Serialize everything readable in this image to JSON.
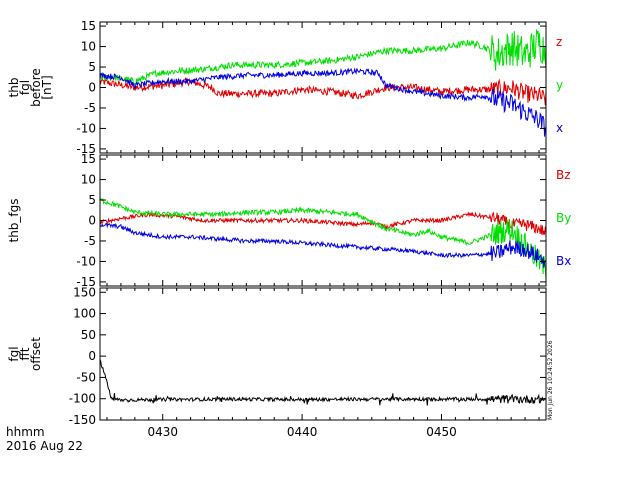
{
  "colors": {
    "red": "#e00000",
    "green": "#00e000",
    "blue": "#0000e0",
    "black": "#000000"
  },
  "footer": {
    "time_label": "hhmm",
    "date_label": "2016 Aug 22",
    "timestamp": "Mon Jun 26 10:24:52 2026"
  },
  "chart_data": [
    {
      "type": "line",
      "ylabel_lines": [
        "thb",
        "fgl",
        "before",
        "[nT]"
      ],
      "ylim": [
        -16,
        16
      ],
      "yticks": [
        -15,
        -10,
        -5,
        0,
        5,
        10,
        15
      ],
      "xlim": [
        425.5,
        457.5
      ],
      "xticks": [
        {
          "value": 430,
          "label": "0430"
        },
        {
          "value": 440,
          "label": "0440"
        },
        {
          "value": 450,
          "label": "0450"
        }
      ],
      "series": [
        {
          "name": "z",
          "color": "#e00000",
          "noise": 0.9,
          "burst": 2.2,
          "x": [
            425.5,
            428,
            430,
            432,
            433.5,
            434,
            436,
            438,
            440,
            442,
            444,
            446,
            448,
            450,
            452,
            454,
            455,
            456,
            457,
            457.5
          ],
          "y": [
            1.5,
            0,
            0.5,
            1.5,
            0,
            -1.5,
            -1.5,
            -1.5,
            -0.5,
            -1,
            -2,
            0,
            0,
            -1,
            -0.5,
            -0.5,
            0,
            -1.5,
            -2,
            -3
          ]
        },
        {
          "name": "y",
          "color": "#00e000",
          "noise": 0.8,
          "burst": 4.5,
          "x": [
            425.5,
            426.5,
            428,
            429.5,
            431,
            433,
            435,
            438,
            440,
            442,
            444,
            446,
            448,
            450,
            452,
            453,
            454,
            455,
            456,
            457,
            457.5
          ],
          "y": [
            2.5,
            2.5,
            1.5,
            3.5,
            4,
            4.5,
            5.5,
            5.5,
            6,
            6.5,
            7.5,
            9,
            9,
            9.5,
            11,
            10,
            8,
            10,
            8,
            11,
            9
          ]
        },
        {
          "name": "x",
          "color": "#0000e0",
          "noise": 0.7,
          "burst": 2.5,
          "x": [
            425.5,
            427,
            428,
            430,
            432,
            434,
            436,
            438,
            440,
            442,
            444,
            445.5,
            446,
            448,
            450,
            452,
            453,
            454,
            455,
            456,
            457,
            457.5
          ],
          "y": [
            3,
            2.5,
            0.5,
            1.5,
            1.5,
            2.5,
            3,
            3,
            3.5,
            3.5,
            4,
            3.5,
            0.5,
            -1,
            -2,
            -2.5,
            -2,
            -3,
            -4,
            -6,
            -8,
            -10
          ]
        }
      ]
    },
    {
      "type": "line",
      "ylabel_lines": [
        "thb_fgs"
      ],
      "ylim": [
        -16,
        16
      ],
      "yticks": [
        -15,
        -10,
        -5,
        0,
        5,
        10,
        15
      ],
      "xlim": [
        425.5,
        457.5
      ],
      "xticks": [
        {
          "value": 430,
          "label": "0430"
        },
        {
          "value": 440,
          "label": "0440"
        },
        {
          "value": 450,
          "label": "0450"
        }
      ],
      "series": [
        {
          "name": "Bz",
          "color": "#e00000",
          "noise": 0.5,
          "burst": 1.5,
          "x": [
            425.5,
            427,
            429,
            431,
            433,
            435,
            437,
            440,
            442,
            444,
            445,
            446,
            448,
            450,
            452,
            454,
            455,
            456,
            457,
            457.5
          ],
          "y": [
            -0.5,
            0.5,
            1.5,
            1,
            0,
            0,
            0,
            0,
            -0.5,
            -1,
            -0.5,
            -1.5,
            0,
            0,
            1.5,
            0.5,
            -1,
            -1,
            -2,
            -3
          ]
        },
        {
          "name": "By",
          "color": "#00e000",
          "noise": 0.6,
          "burst": 3,
          "x": [
            425.5,
            426.5,
            428,
            430,
            432,
            434,
            436,
            438,
            440,
            442,
            444,
            446,
            448,
            449,
            450,
            452,
            454,
            455,
            456,
            457,
            457.5
          ],
          "y": [
            5,
            4,
            2,
            1.5,
            1.5,
            1.5,
            2,
            2,
            2.5,
            2,
            1.5,
            -2,
            -3.5,
            -2.5,
            -4,
            -5.5,
            -3,
            -2,
            -6,
            -10,
            -12
          ]
        },
        {
          "name": "Bx",
          "color": "#0000e0",
          "noise": 0.5,
          "burst": 2,
          "x": [
            425.5,
            427,
            428,
            430,
            432,
            434,
            436,
            438,
            440,
            442,
            444,
            446,
            448,
            450,
            452,
            454,
            455,
            456,
            457,
            457.5
          ],
          "y": [
            -1,
            -1.5,
            -3,
            -4,
            -4,
            -4.5,
            -5,
            -5,
            -5.5,
            -6,
            -6.5,
            -7,
            -7.5,
            -8.5,
            -8.5,
            -8,
            -6.5,
            -7,
            -9,
            -10
          ]
        }
      ]
    },
    {
      "type": "line",
      "ylabel_lines": [
        "fgl",
        "fft",
        "offset"
      ],
      "ylim": [
        -150,
        160
      ],
      "yticks": [
        -150,
        -100,
        -50,
        0,
        50,
        100,
        150
      ],
      "xlim": [
        425.5,
        457.5
      ],
      "xticks": [
        {
          "value": 430,
          "label": "0430"
        },
        {
          "value": 440,
          "label": "0440"
        },
        {
          "value": 450,
          "label": "0450"
        }
      ],
      "series": [
        {
          "name": "",
          "color": "#000000",
          "noise": 4,
          "burst": 10,
          "x": [
            425.5,
            426,
            426.3,
            427,
            430,
            435,
            440,
            445,
            450,
            455,
            457.5
          ],
          "y": [
            -10,
            -60,
            -100,
            -103,
            -102,
            -101,
            -102,
            -101,
            -101,
            -101,
            -102
          ]
        }
      ]
    }
  ]
}
